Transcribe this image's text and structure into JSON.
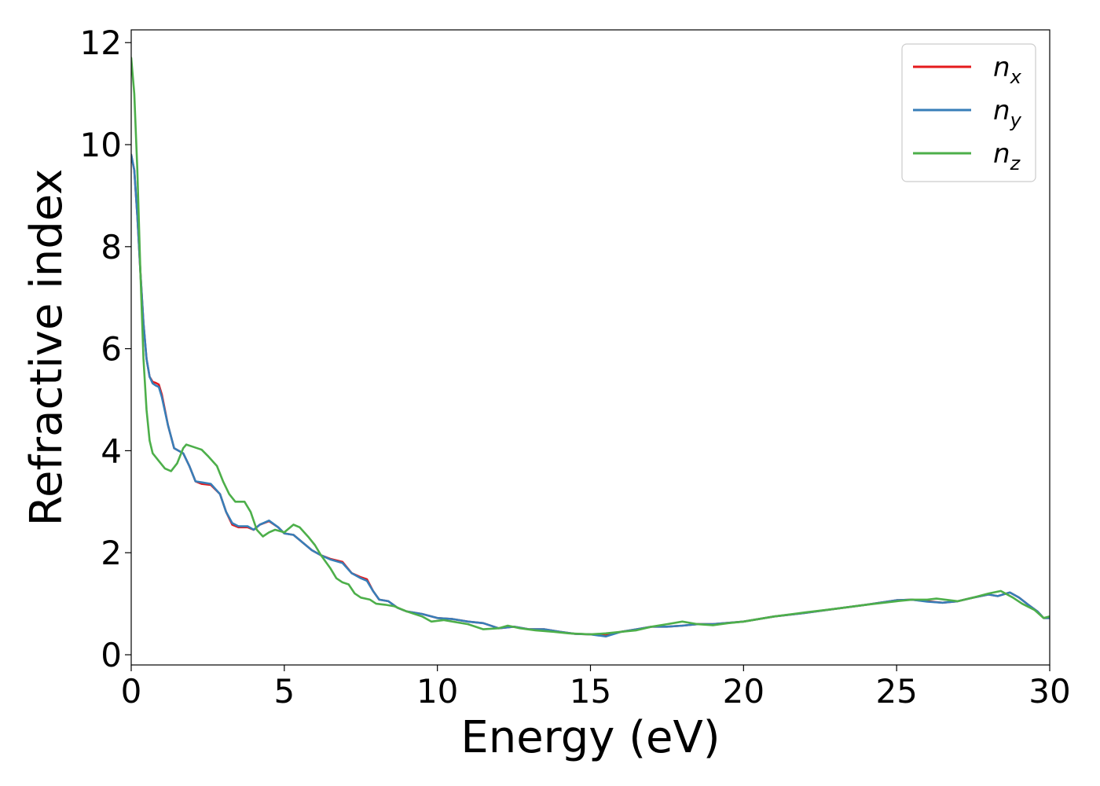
{
  "chart_data": {
    "type": "line",
    "xlabel": "Energy (eV)",
    "ylabel": "Refractive index",
    "xlim": [
      0,
      30
    ],
    "ylim": [
      -0.2,
      12.25
    ],
    "xticks": [
      "0",
      "5",
      "10",
      "15",
      "20",
      "25",
      "30"
    ],
    "yticks": [
      "0",
      "2",
      "4",
      "6",
      "8",
      "10",
      "12"
    ],
    "grid": false,
    "legend_position": "top-right",
    "series": [
      {
        "name": "n",
        "subscript": "x",
        "color": "#e41a1c",
        "points": [
          [
            0,
            9.8
          ],
          [
            0.1,
            9.5
          ],
          [
            0.2,
            8.6
          ],
          [
            0.3,
            7.5
          ],
          [
            0.4,
            6.5
          ],
          [
            0.5,
            5.8
          ],
          [
            0.6,
            5.45
          ],
          [
            0.7,
            5.35
          ],
          [
            0.8,
            5.33
          ],
          [
            0.9,
            5.3
          ],
          [
            1.0,
            5.1
          ],
          [
            1.2,
            4.5
          ],
          [
            1.4,
            4.05
          ],
          [
            1.7,
            3.95
          ],
          [
            1.9,
            3.7
          ],
          [
            2.1,
            3.4
          ],
          [
            2.3,
            3.35
          ],
          [
            2.6,
            3.33
          ],
          [
            2.9,
            3.15
          ],
          [
            3.1,
            2.8
          ],
          [
            3.3,
            2.55
          ],
          [
            3.5,
            2.5
          ],
          [
            3.8,
            2.5
          ],
          [
            4.0,
            2.45
          ],
          [
            4.2,
            2.55
          ],
          [
            4.5,
            2.62
          ],
          [
            4.8,
            2.5
          ],
          [
            5.0,
            2.38
          ],
          [
            5.3,
            2.35
          ],
          [
            5.6,
            2.2
          ],
          [
            5.9,
            2.05
          ],
          [
            6.2,
            1.95
          ],
          [
            6.5,
            1.88
          ],
          [
            6.9,
            1.82
          ],
          [
            7.2,
            1.6
          ],
          [
            7.5,
            1.52
          ],
          [
            7.7,
            1.48
          ],
          [
            7.9,
            1.25
          ],
          [
            8.1,
            1.08
          ],
          [
            8.4,
            1.05
          ],
          [
            8.7,
            0.92
          ],
          [
            9.0,
            0.85
          ],
          [
            9.5,
            0.8
          ],
          [
            10.0,
            0.72
          ],
          [
            10.5,
            0.7
          ],
          [
            11.0,
            0.65
          ],
          [
            11.5,
            0.62
          ],
          [
            12.0,
            0.52
          ],
          [
            12.5,
            0.55
          ],
          [
            13.0,
            0.5
          ],
          [
            13.5,
            0.5
          ],
          [
            14.0,
            0.45
          ],
          [
            14.5,
            0.41
          ],
          [
            15.0,
            0.4
          ],
          [
            15.5,
            0.38
          ],
          [
            16.0,
            0.45
          ],
          [
            16.5,
            0.5
          ],
          [
            17.0,
            0.55
          ],
          [
            17.5,
            0.55
          ],
          [
            18.0,
            0.57
          ],
          [
            18.5,
            0.6
          ],
          [
            19.0,
            0.6
          ],
          [
            20.0,
            0.65
          ],
          [
            21.0,
            0.75
          ],
          [
            22.0,
            0.82
          ],
          [
            23.0,
            0.9
          ],
          [
            24.0,
            0.98
          ],
          [
            25.0,
            1.07
          ],
          [
            25.5,
            1.08
          ],
          [
            26.0,
            1.05
          ],
          [
            26.5,
            1.02
          ],
          [
            27.0,
            1.05
          ],
          [
            27.5,
            1.12
          ],
          [
            28.0,
            1.18
          ],
          [
            28.3,
            1.15
          ],
          [
            28.7,
            1.22
          ],
          [
            29.0,
            1.12
          ],
          [
            29.3,
            0.98
          ],
          [
            29.6,
            0.85
          ],
          [
            29.8,
            0.72
          ],
          [
            30.0,
            0.72
          ]
        ]
      },
      {
        "name": "n",
        "subscript": "y",
        "color": "#377eb8",
        "points": [
          [
            0,
            9.8
          ],
          [
            0.1,
            9.5
          ],
          [
            0.2,
            8.6
          ],
          [
            0.3,
            7.5
          ],
          [
            0.4,
            6.5
          ],
          [
            0.5,
            5.8
          ],
          [
            0.6,
            5.45
          ],
          [
            0.7,
            5.32
          ],
          [
            0.8,
            5.28
          ],
          [
            0.9,
            5.25
          ],
          [
            1.0,
            5.05
          ],
          [
            1.2,
            4.5
          ],
          [
            1.4,
            4.05
          ],
          [
            1.7,
            3.95
          ],
          [
            1.9,
            3.7
          ],
          [
            2.1,
            3.4
          ],
          [
            2.3,
            3.38
          ],
          [
            2.6,
            3.35
          ],
          [
            2.9,
            3.15
          ],
          [
            3.1,
            2.8
          ],
          [
            3.3,
            2.58
          ],
          [
            3.5,
            2.52
          ],
          [
            3.8,
            2.52
          ],
          [
            4.0,
            2.45
          ],
          [
            4.2,
            2.55
          ],
          [
            4.5,
            2.63
          ],
          [
            4.8,
            2.5
          ],
          [
            5.0,
            2.38
          ],
          [
            5.3,
            2.35
          ],
          [
            5.6,
            2.2
          ],
          [
            5.9,
            2.05
          ],
          [
            6.2,
            1.95
          ],
          [
            6.5,
            1.87
          ],
          [
            6.9,
            1.8
          ],
          [
            7.2,
            1.6
          ],
          [
            7.5,
            1.5
          ],
          [
            7.7,
            1.45
          ],
          [
            7.9,
            1.25
          ],
          [
            8.1,
            1.08
          ],
          [
            8.4,
            1.05
          ],
          [
            8.7,
            0.92
          ],
          [
            9.0,
            0.85
          ],
          [
            9.5,
            0.8
          ],
          [
            10.0,
            0.72
          ],
          [
            10.5,
            0.7
          ],
          [
            11.0,
            0.65
          ],
          [
            11.5,
            0.62
          ],
          [
            12.0,
            0.52
          ],
          [
            12.5,
            0.55
          ],
          [
            13.0,
            0.5
          ],
          [
            13.5,
            0.5
          ],
          [
            14.0,
            0.45
          ],
          [
            14.5,
            0.41
          ],
          [
            15.0,
            0.4
          ],
          [
            15.5,
            0.36
          ],
          [
            16.0,
            0.45
          ],
          [
            16.5,
            0.5
          ],
          [
            17.0,
            0.55
          ],
          [
            17.5,
            0.55
          ],
          [
            18.0,
            0.57
          ],
          [
            18.5,
            0.6
          ],
          [
            19.0,
            0.6
          ],
          [
            20.0,
            0.65
          ],
          [
            21.0,
            0.75
          ],
          [
            22.0,
            0.82
          ],
          [
            23.0,
            0.9
          ],
          [
            24.0,
            0.98
          ],
          [
            25.0,
            1.07
          ],
          [
            25.5,
            1.08
          ],
          [
            26.0,
            1.04
          ],
          [
            26.5,
            1.02
          ],
          [
            27.0,
            1.05
          ],
          [
            27.5,
            1.12
          ],
          [
            28.0,
            1.18
          ],
          [
            28.3,
            1.15
          ],
          [
            28.7,
            1.22
          ],
          [
            29.0,
            1.12
          ],
          [
            29.3,
            0.98
          ],
          [
            29.6,
            0.85
          ],
          [
            29.8,
            0.72
          ],
          [
            30.0,
            0.72
          ]
        ]
      },
      {
        "name": "n",
        "subscript": "z",
        "color": "#4daf4a",
        "points": [
          [
            0,
            11.7
          ],
          [
            0.1,
            11.0
          ],
          [
            0.2,
            9.5
          ],
          [
            0.3,
            7.5
          ],
          [
            0.4,
            5.8
          ],
          [
            0.5,
            4.8
          ],
          [
            0.6,
            4.2
          ],
          [
            0.7,
            3.95
          ],
          [
            0.9,
            3.8
          ],
          [
            1.1,
            3.65
          ],
          [
            1.3,
            3.6
          ],
          [
            1.5,
            3.75
          ],
          [
            1.7,
            4.05
          ],
          [
            1.8,
            4.12
          ],
          [
            2.0,
            4.08
          ],
          [
            2.3,
            4.02
          ],
          [
            2.5,
            3.9
          ],
          [
            2.8,
            3.7
          ],
          [
            3.0,
            3.4
          ],
          [
            3.2,
            3.15
          ],
          [
            3.4,
            3.0
          ],
          [
            3.7,
            3.0
          ],
          [
            3.9,
            2.8
          ],
          [
            4.1,
            2.45
          ],
          [
            4.3,
            2.32
          ],
          [
            4.5,
            2.4
          ],
          [
            4.7,
            2.45
          ],
          [
            5.0,
            2.4
          ],
          [
            5.3,
            2.55
          ],
          [
            5.5,
            2.5
          ],
          [
            5.8,
            2.3
          ],
          [
            6.0,
            2.15
          ],
          [
            6.2,
            1.95
          ],
          [
            6.5,
            1.7
          ],
          [
            6.7,
            1.5
          ],
          [
            6.9,
            1.42
          ],
          [
            7.1,
            1.38
          ],
          [
            7.3,
            1.2
          ],
          [
            7.5,
            1.12
          ],
          [
            7.8,
            1.08
          ],
          [
            8.0,
            1.0
          ],
          [
            8.3,
            0.98
          ],
          [
            8.6,
            0.95
          ],
          [
            9.0,
            0.85
          ],
          [
            9.5,
            0.75
          ],
          [
            9.8,
            0.65
          ],
          [
            10.2,
            0.68
          ],
          [
            10.5,
            0.65
          ],
          [
            11.0,
            0.6
          ],
          [
            11.5,
            0.5
          ],
          [
            12.0,
            0.52
          ],
          [
            12.3,
            0.57
          ],
          [
            12.7,
            0.52
          ],
          [
            13.2,
            0.48
          ],
          [
            13.8,
            0.45
          ],
          [
            14.3,
            0.42
          ],
          [
            15.0,
            0.4
          ],
          [
            15.5,
            0.42
          ],
          [
            16.0,
            0.45
          ],
          [
            16.5,
            0.48
          ],
          [
            17.0,
            0.55
          ],
          [
            17.5,
            0.6
          ],
          [
            18.0,
            0.65
          ],
          [
            18.5,
            0.6
          ],
          [
            19.0,
            0.58
          ],
          [
            19.5,
            0.62
          ],
          [
            20.0,
            0.65
          ],
          [
            21.0,
            0.75
          ],
          [
            22.0,
            0.83
          ],
          [
            23.0,
            0.9
          ],
          [
            24.0,
            0.98
          ],
          [
            25.0,
            1.05
          ],
          [
            25.5,
            1.08
          ],
          [
            26.0,
            1.08
          ],
          [
            26.3,
            1.1
          ],
          [
            27.0,
            1.05
          ],
          [
            27.5,
            1.12
          ],
          [
            28.0,
            1.2
          ],
          [
            28.4,
            1.25
          ],
          [
            28.8,
            1.12
          ],
          [
            29.1,
            1.0
          ],
          [
            29.5,
            0.88
          ],
          [
            29.8,
            0.72
          ],
          [
            30.0,
            0.75
          ]
        ]
      }
    ]
  }
}
